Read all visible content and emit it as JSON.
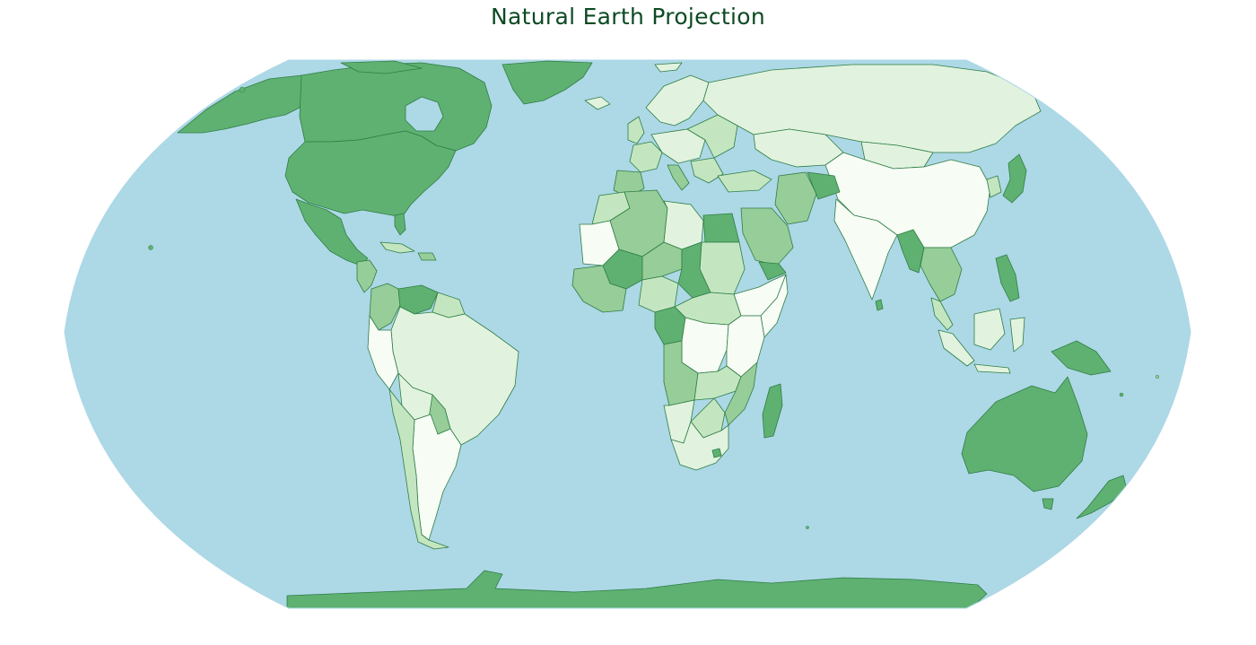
{
  "title": "Natural Earth Projection",
  "colors": {
    "ocean": "#add8e6",
    "title": "#0c4a23",
    "dark_green": "#5fb171",
    "mid_green": "#97cd98",
    "light_green": "#c3e6c0",
    "pale_green": "#e1f3de",
    "near_white": "#f7fcf5",
    "border": "#2e7d45"
  },
  "projection": "natural-earth"
}
